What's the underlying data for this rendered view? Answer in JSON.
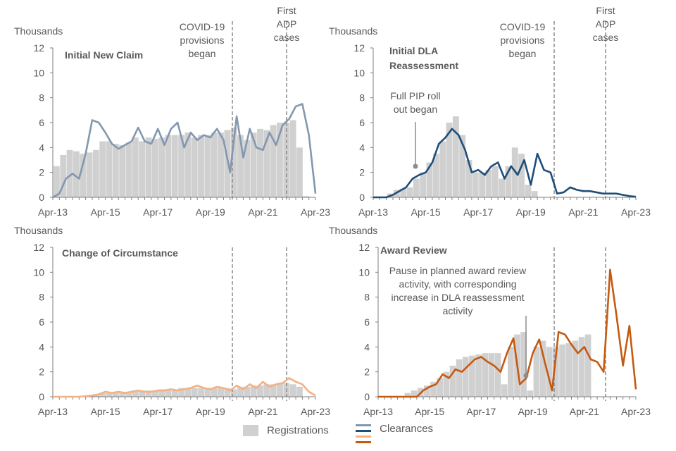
{
  "chart_data": [
    {
      "type": "bar+line",
      "title": "Initial New Claim",
      "title_color": "#8497B0",
      "line_color": "#8497B0",
      "ylabel": "Thousands",
      "ylim": [
        0,
        12
      ],
      "yticks": [
        "0",
        "2",
        "4",
        "6",
        "8",
        "10",
        "12"
      ],
      "xticks": [
        "Apr-13",
        "Apr-15",
        "Apr-17",
        "Apr-19",
        "Apr-21",
        "Apr-23"
      ],
      "x_step": "quarterly from Apr-13",
      "registrations": [
        2.5,
        3.4,
        3.8,
        3.7,
        3.5,
        3.6,
        3.8,
        4.5,
        4.5,
        4.3,
        4.2,
        4.4,
        4.8,
        4.5,
        4.8,
        4.7,
        4.8,
        5.0,
        5.0,
        5.0,
        5.2,
        4.8,
        5.0,
        5.0,
        5.2,
        5.2,
        5.4,
        5.6,
        5.0,
        4.6,
        5.2,
        5.5,
        5.4,
        5.8,
        6.0,
        6.0,
        6.2,
        4.0,
        0.1,
        0,
        0
      ],
      "clearances": [
        0,
        0.3,
        1.5,
        1.9,
        1.5,
        3.5,
        6.2,
        6.0,
        5.2,
        4.3,
        3.9,
        4.2,
        4.5,
        5.6,
        4.5,
        4.3,
        5.5,
        4.2,
        5.5,
        6.0,
        4.0,
        5.2,
        4.6,
        5.0,
        4.8,
        5.5,
        4.6,
        2.0,
        6.5,
        3.2,
        5.5,
        4.0,
        3.8,
        5.2,
        4.2,
        5.8,
        6.3,
        7.3,
        7.5,
        5.0,
        0.3
      ],
      "annotations": [
        {
          "text": "COVID-19 provisions began",
          "x_years": 6.85
        },
        {
          "text": "First ADP cases",
          "x_years": 8.9
        }
      ]
    },
    {
      "type": "bar+line",
      "title": "Initial DLA Reassessment",
      "title_color": "#1F4E79",
      "line_color": "#1F4E79",
      "ylabel": "Thousands",
      "ylim": [
        0,
        12
      ],
      "yticks": [
        "0",
        "2",
        "4",
        "6",
        "8",
        "10",
        "12"
      ],
      "xticks": [
        "Apr-13",
        "Apr-15",
        "Apr-17",
        "Apr-19",
        "Apr-21",
        "Apr-23"
      ],
      "x_step": "quarterly from Apr-13",
      "registrations": [
        0,
        0,
        0.3,
        0.6,
        0.7,
        0.8,
        1.5,
        2.0,
        2.8,
        3.5,
        4.5,
        6.0,
        6.5,
        5.0,
        3.0,
        2.0,
        2.0,
        2.2,
        2.5,
        1.5,
        2.5,
        4.0,
        3.5,
        1.0,
        0.5,
        0,
        0,
        0,
        0,
        0,
        0,
        0,
        0,
        0,
        0,
        0,
        0,
        0,
        0,
        0,
        0
      ],
      "clearances": [
        0,
        0,
        0,
        0.2,
        0.5,
        0.8,
        1.5,
        1.8,
        2.0,
        2.8,
        4.3,
        4.8,
        5.5,
        5.0,
        3.8,
        2.0,
        2.2,
        1.8,
        2.5,
        2.8,
        1.5,
        2.5,
        1.8,
        3.0,
        1.0,
        3.5,
        2.2,
        2.0,
        0.3,
        0.4,
        0.8,
        0.6,
        0.5,
        0.5,
        0.4,
        0.3,
        0.3,
        0.3,
        0.2,
        0.1,
        0.05
      ],
      "annotations": [
        {
          "text": "Full PIP roll out began",
          "x_years": 1.5
        },
        {
          "text": "COVID-19 provisions began",
          "x_years": 6.85
        },
        {
          "text": "First ADP cases",
          "x_years": 8.9
        }
      ]
    },
    {
      "type": "bar+line",
      "title": "Change of Circumstance",
      "title_color": "#F4B183",
      "line_color": "#F4B183",
      "ylabel": "Thousands",
      "ylim": [
        0,
        12
      ],
      "yticks": [
        "0",
        "2",
        "4",
        "6",
        "8",
        "10",
        "12"
      ],
      "xticks": [
        "Apr-13",
        "Apr-15",
        "Apr-17",
        "Apr-19",
        "Apr-21",
        "Apr-23"
      ],
      "x_step": "quarterly from Apr-13",
      "registrations": [
        0,
        0,
        0,
        0,
        0.05,
        0.1,
        0.2,
        0.3,
        0.3,
        0.4,
        0.4,
        0.4,
        0.5,
        0.5,
        0.5,
        0.5,
        0.6,
        0.6,
        0.6,
        0.7,
        0.7,
        0.7,
        0.7,
        0.7,
        0.7,
        0.7,
        0.7,
        0.6,
        0.8,
        0.8,
        0.9,
        0.9,
        1.0,
        1.0,
        1.1,
        1.1,
        1.0,
        0.8,
        0,
        0,
        0
      ],
      "clearances": [
        0,
        0,
        0,
        0,
        0,
        0.05,
        0.1,
        0.2,
        0.4,
        0.3,
        0.4,
        0.3,
        0.4,
        0.5,
        0.4,
        0.4,
        0.5,
        0.5,
        0.6,
        0.5,
        0.6,
        0.7,
        0.9,
        0.7,
        0.6,
        0.8,
        0.7,
        0.5,
        0.9,
        0.6,
        1.0,
        0.7,
        1.2,
        0.8,
        1.0,
        1.1,
        1.5,
        1.2,
        1.0,
        0.4,
        0.1
      ],
      "annotations": []
    },
    {
      "type": "bar+line",
      "title": "Award Review",
      "title_color": "#C55A11",
      "line_color": "#C55A11",
      "ylabel": "Thousands",
      "ylim": [
        0,
        12
      ],
      "yticks": [
        "0",
        "2",
        "4",
        "6",
        "8",
        "10",
        "12"
      ],
      "xticks": [
        "Apr-13",
        "Apr-15",
        "Apr-17",
        "Apr-19",
        "Apr-21",
        "Apr-23"
      ],
      "x_step": "quarterly from Apr-13",
      "registrations": [
        0,
        0,
        0,
        0,
        0.3,
        0.5,
        0.7,
        0.9,
        1.2,
        1.5,
        2.0,
        2.5,
        3.0,
        3.2,
        3.3,
        3.4,
        3.5,
        3.5,
        3.5,
        1.0,
        4.0,
        5.0,
        5.2,
        0.5,
        4.0,
        4.5,
        4.0,
        4.0,
        4.2,
        4.3,
        4.5,
        4.8,
        5.0,
        0,
        0,
        0,
        0,
        0,
        0,
        0,
        0
      ],
      "clearances": [
        0,
        0,
        0,
        0,
        0,
        0,
        0,
        0.5,
        0.8,
        1.0,
        1.8,
        1.5,
        2.2,
        2.0,
        2.5,
        3.0,
        3.2,
        2.8,
        2.5,
        2.0,
        3.5,
        4.7,
        1.0,
        1.5,
        3.5,
        4.6,
        2.5,
        0.5,
        5.2,
        5.0,
        4.2,
        3.5,
        4.0,
        3.0,
        2.8,
        2.0,
        10.2,
        6.5,
        2.5,
        5.7,
        0.6
      ],
      "annotations": [
        {
          "text": "Pause in planned award review activity, with corresponding increase in DLA reassessment activity",
          "x_years": 5.5
        }
      ]
    }
  ],
  "legend": {
    "registrations": "Registrations",
    "clearances": "Clearances"
  },
  "colors": {
    "bars": "#D0D0D0",
    "axis": "#7F7F7F",
    "vline": "#8C8C8C"
  }
}
